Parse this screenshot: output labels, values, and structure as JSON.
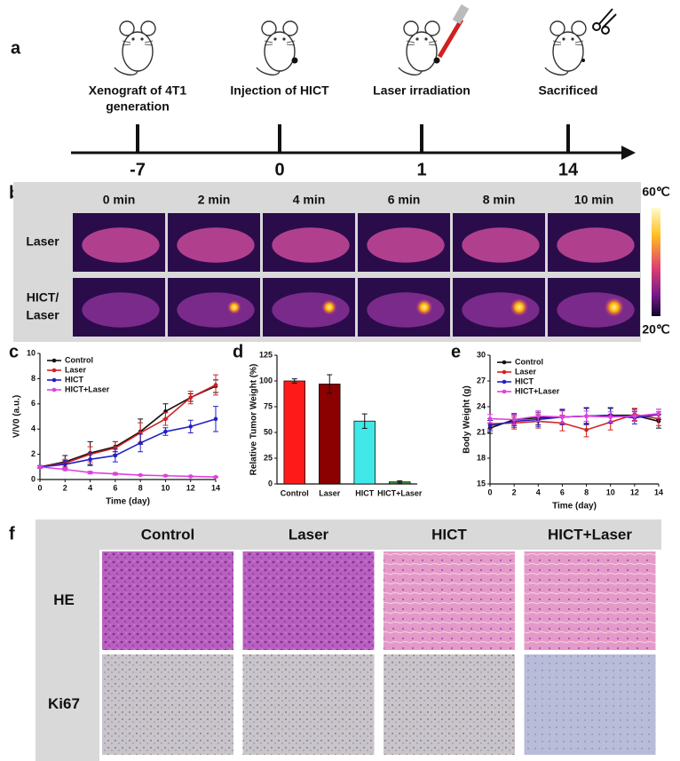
{
  "panel_labels": [
    "a",
    "b",
    "c",
    "d",
    "e",
    "f"
  ],
  "timeline": {
    "events": [
      {
        "label": [
          "Xenograft of 4T1",
          "generation"
        ],
        "day": -7
      },
      {
        "label": [
          "Injection of HICT"
        ],
        "day": 0
      },
      {
        "label": [
          "Laser irradiation"
        ],
        "day": 1
      },
      {
        "label": [
          "Sacrificed"
        ],
        "day": 14
      }
    ]
  },
  "thermal": {
    "times": [
      "0 min",
      "2 min",
      "4 min",
      "6 min",
      "8 min",
      "10 min"
    ],
    "rows": [
      [
        "Laser"
      ],
      [
        "HICT/",
        "Laser"
      ]
    ],
    "colorbar": {
      "max": "60℃",
      "min": "20℃"
    }
  },
  "chart_data": [
    {
      "type": "line",
      "xlabel": "Time (day)",
      "ylabel": "V/V0 (a.u.)",
      "x": [
        0,
        2,
        4,
        6,
        8,
        10,
        12,
        14
      ],
      "xlim": [
        0,
        14
      ],
      "xticks": [
        0,
        2,
        4,
        6,
        8,
        10,
        12,
        14
      ],
      "ylim": [
        0,
        10
      ],
      "yticks": [
        0,
        2,
        4,
        6,
        8,
        10
      ],
      "legend": "top-left",
      "series": [
        {
          "name": "Control",
          "color": "#111111",
          "values": [
            1,
            1.4,
            2.1,
            2.6,
            3.8,
            5.4,
            6.5,
            7.4
          ],
          "errors": [
            0.1,
            0.5,
            0.9,
            0.4,
            1.0,
            0.6,
            0.3,
            0.5
          ]
        },
        {
          "name": "Laser",
          "color": "#d42020",
          "values": [
            1,
            1.3,
            2.0,
            2.5,
            3.7,
            4.8,
            6.5,
            7.5
          ],
          "errors": [
            0.1,
            0.3,
            0.6,
            0.5,
            0.8,
            0.5,
            0.5,
            0.8
          ]
        },
        {
          "name": "HICT",
          "color": "#2020c8",
          "values": [
            1,
            1.2,
            1.6,
            1.9,
            2.9,
            3.8,
            4.2,
            4.8
          ],
          "errors": [
            0.1,
            0.3,
            0.5,
            0.5,
            0.7,
            0.3,
            0.5,
            1.0
          ]
        },
        {
          "name": "HICT+Laser",
          "color": "#e040e0",
          "values": [
            1,
            0.8,
            0.55,
            0.45,
            0.35,
            0.3,
            0.25,
            0.2
          ],
          "errors": [
            0.1,
            0.1,
            0.1,
            0.1,
            0.05,
            0.05,
            0.05,
            0.05
          ]
        }
      ]
    },
    {
      "type": "bar",
      "ylabel": "Relative Tumor Weight (%)",
      "categories": [
        "Control",
        "Laser",
        "HICT",
        "HICT+Laser"
      ],
      "values": [
        100,
        97,
        61,
        2
      ],
      "errors": [
        2,
        9,
        7,
        1
      ],
      "colors": [
        "#ff1a1a",
        "#8b0000",
        "#40e8e8",
        "#2e9a2e"
      ],
      "ylim": [
        0,
        125
      ],
      "yticks": [
        0,
        25,
        50,
        75,
        100,
        125
      ]
    },
    {
      "type": "line",
      "xlabel": "Time (day)",
      "ylabel": "Body Weight (g)",
      "x": [
        0,
        2,
        4,
        6,
        8,
        10,
        12,
        14
      ],
      "xlim": [
        0,
        14
      ],
      "xticks": [
        0,
        2,
        4,
        6,
        8,
        10,
        12,
        14
      ],
      "ylim": [
        15,
        30
      ],
      "yticks": [
        15,
        18,
        21,
        24,
        27,
        30
      ],
      "legend": "top-left",
      "series": [
        {
          "name": "Control",
          "color": "#111111",
          "values": [
            21.5,
            22.5,
            22.7,
            22.8,
            22.9,
            23.0,
            23.0,
            22.3
          ],
          "errors": [
            0.6,
            0.7,
            0.8,
            0.8,
            0.9,
            0.8,
            0.7,
            0.8
          ]
        },
        {
          "name": "Laser",
          "color": "#d42020",
          "values": [
            22.0,
            22.1,
            22.3,
            22.1,
            21.3,
            22.2,
            23.1,
            22.6
          ],
          "errors": [
            0.6,
            0.7,
            0.8,
            0.9,
            0.8,
            0.9,
            0.7,
            0.8
          ]
        },
        {
          "name": "HICT",
          "color": "#2020c8",
          "values": [
            21.8,
            22.3,
            22.5,
            22.8,
            22.9,
            23.0,
            22.7,
            23.1
          ],
          "errors": [
            0.6,
            0.7,
            0.8,
            0.9,
            1.0,
            0.9,
            0.7,
            0.6
          ]
        },
        {
          "name": "HICT+Laser",
          "color": "#e040e0",
          "values": [
            22.6,
            22.5,
            22.9,
            22.8,
            22.9,
            22.8,
            22.9,
            23.2
          ],
          "errors": [
            0.5,
            0.6,
            0.6,
            0.7,
            0.6,
            0.6,
            0.6,
            0.5
          ]
        }
      ]
    }
  ],
  "histology": {
    "columns": [
      "Control",
      "Laser",
      "HICT",
      "HICT+Laser"
    ],
    "rows": [
      "HE",
      "Ki67"
    ]
  }
}
